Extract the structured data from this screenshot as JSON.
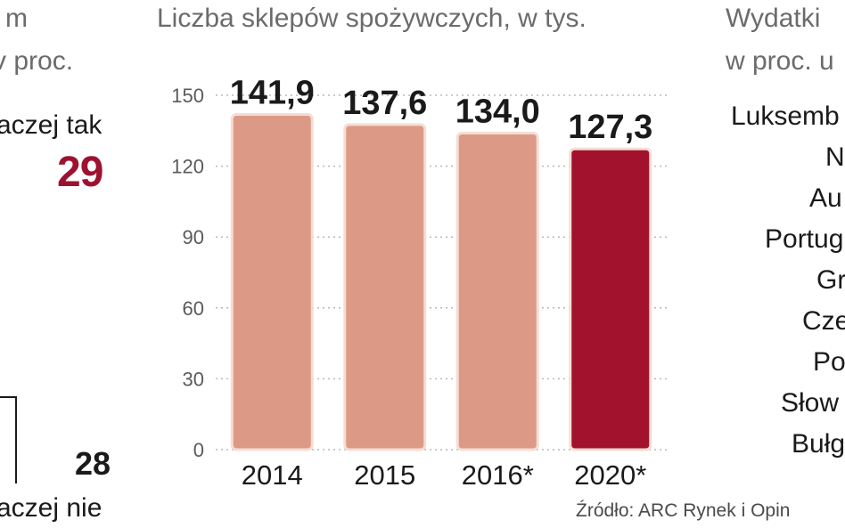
{
  "left_panel": {
    "frag_m": "m",
    "frag_proc": "v proc.",
    "label_top": "aczej tak",
    "value_top": "29",
    "value_bottom": "28",
    "label_bottom": "aczej nie"
  },
  "chart_data": {
    "type": "bar",
    "title": "Liczba sklepów spożywczych, w tys.",
    "categories": [
      "2014",
      "2015",
      "2016*",
      "2020*"
    ],
    "values": [
      141.9,
      137.6,
      134.0,
      127.3
    ],
    "value_labels": [
      "141,9",
      "137,6",
      "134,0",
      "127,3"
    ],
    "yticks": [
      "0",
      "30",
      "60",
      "90",
      "120",
      "150"
    ],
    "ylim": [
      0,
      150
    ],
    "grid": true,
    "colors": {
      "default_bar": "#dc9a86",
      "highlight_bar": "#a3122d",
      "bar_outline": "#f4ddd4",
      "grid": "#b8b8b8"
    },
    "highlight_index": 3
  },
  "right_panel": {
    "title_line1": "Wydatki",
    "title_line2": "w proc. u",
    "countries": [
      "Luksemb",
      "Nie",
      "Au",
      "Portug",
      "Gr",
      "Cze",
      "Po",
      "Słow",
      "Bułg"
    ]
  },
  "source": "Źródło: ARC Rynek i Opin"
}
